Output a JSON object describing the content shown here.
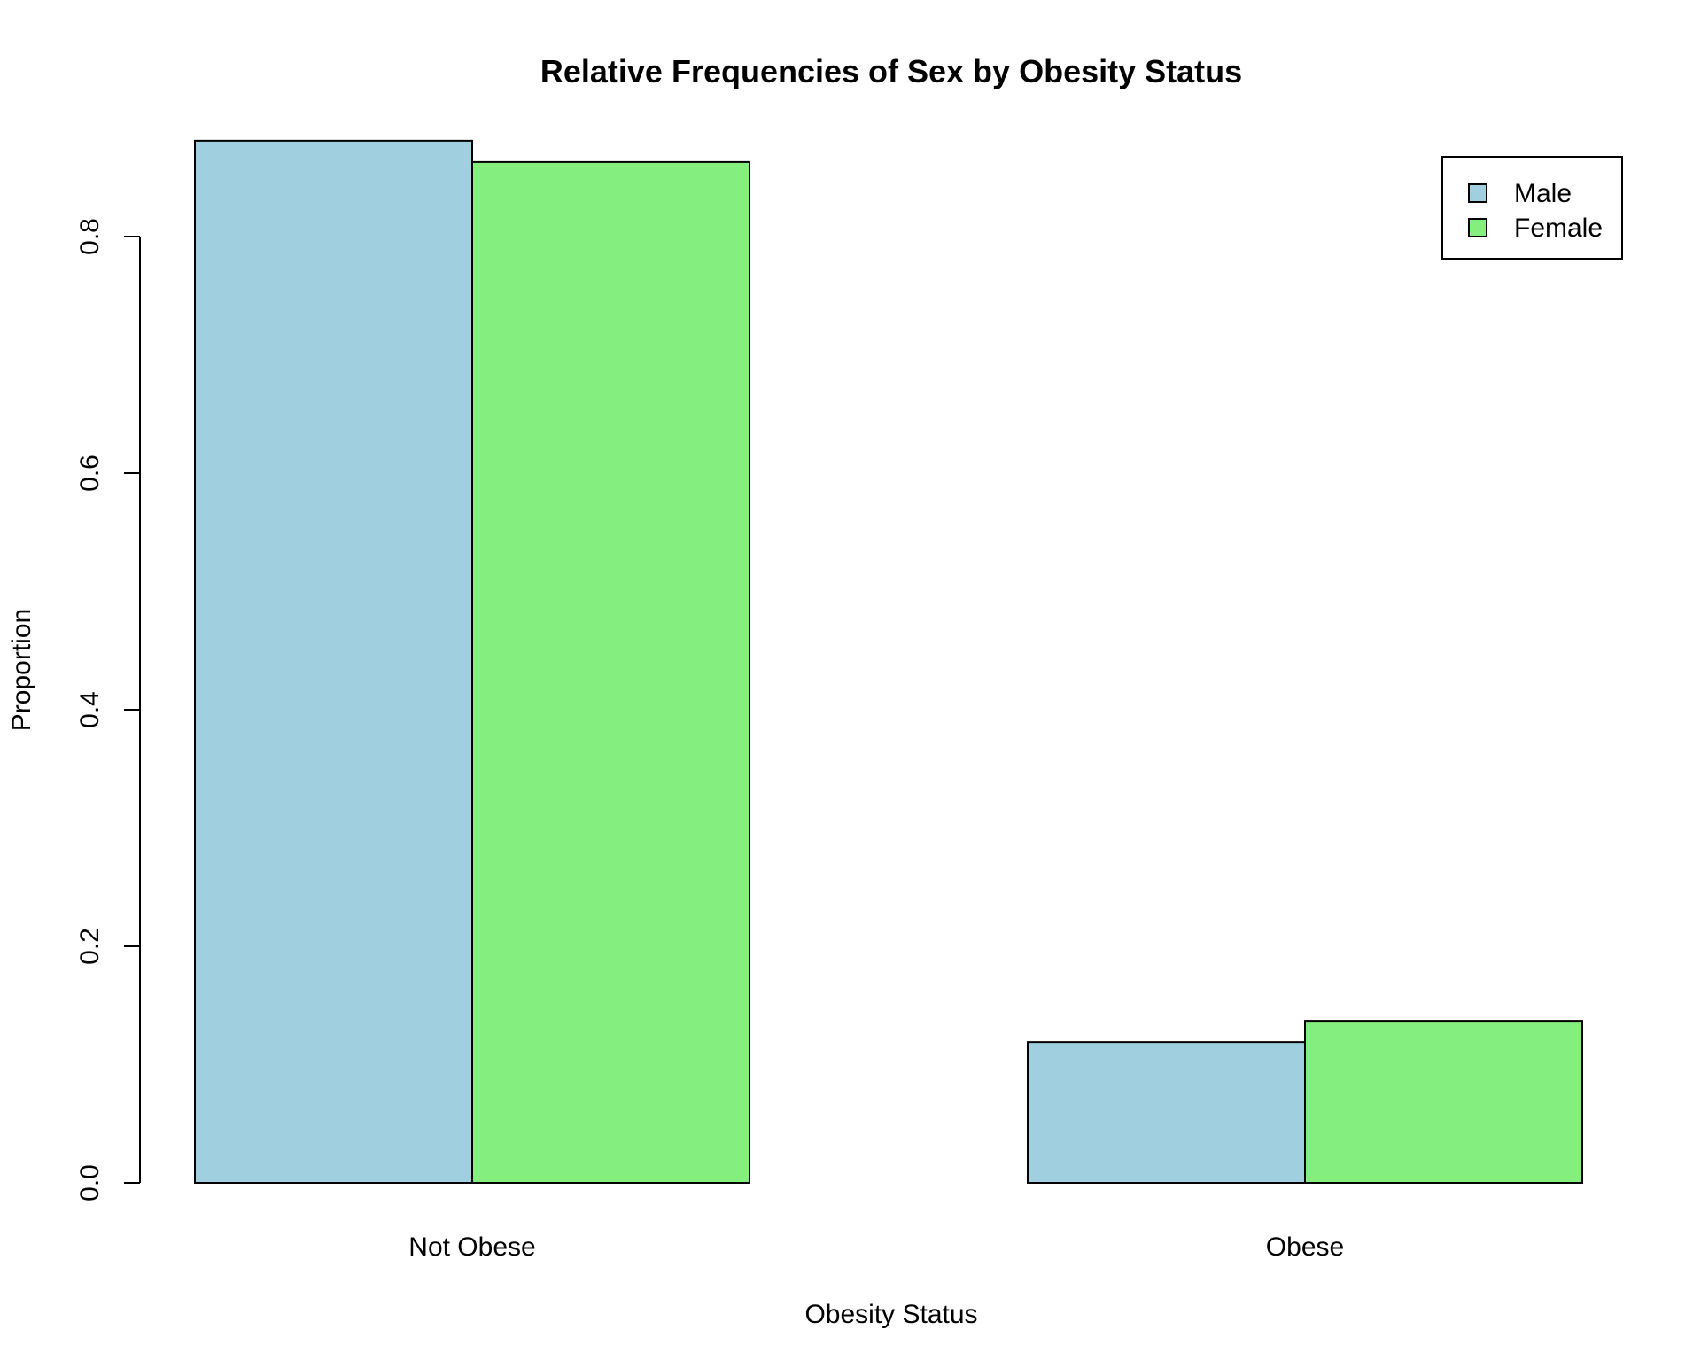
{
  "chart_data": {
    "type": "bar",
    "title": "Relative Frequencies of Sex by Obesity Status",
    "xlabel": "Obesity Status",
    "ylabel": "Proportion",
    "categories": [
      "Not Obese",
      "Obese"
    ],
    "series": [
      {
        "name": "Male",
        "values": [
          0.881,
          0.119
        ],
        "color": "#a0cfe0"
      },
      {
        "name": "Female",
        "values": [
          0.863,
          0.137
        ],
        "color": "#84ef7f"
      }
    ],
    "ylim": [
      0,
      0.9
    ],
    "yticks": [
      {
        "value": 0.0,
        "label": "0.0"
      },
      {
        "value": 0.2,
        "label": "0.2"
      },
      {
        "value": 0.4,
        "label": "0.4"
      },
      {
        "value": 0.6,
        "label": "0.6"
      },
      {
        "value": 0.8,
        "label": "0.8"
      }
    ],
    "legend": "top-right",
    "grid": false
  }
}
